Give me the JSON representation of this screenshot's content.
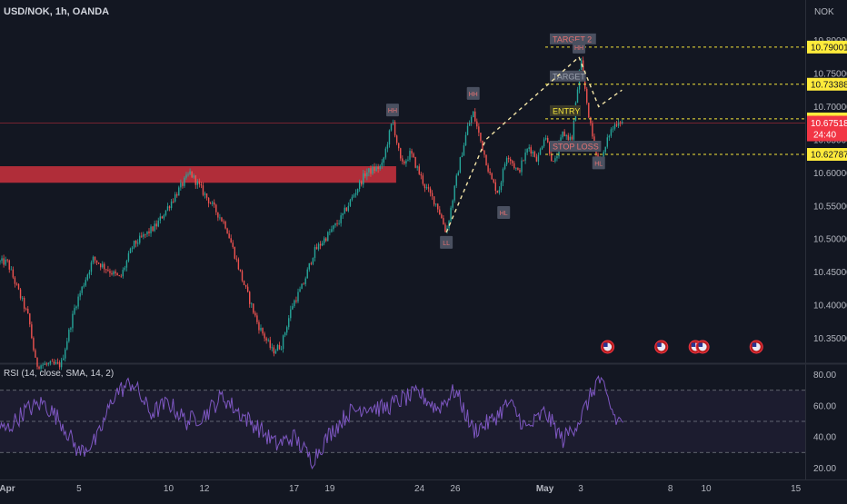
{
  "header": {
    "symbol": "USD/NOK, 1h, OANDA",
    "currency": "NOK"
  },
  "colors": {
    "background": "#131722",
    "up": "#26a69a",
    "down": "#ef5350",
    "zone": "#c2303c",
    "level_line": "#f5e53a",
    "pattern": "#f5e6a8",
    "pivot_box": "#4a5060",
    "pivot_text": "#e57373",
    "rsi_line": "#7e57c2",
    "price_tag": "#f23645",
    "level_tag": "#ffeb3b"
  },
  "chart_data": [
    {
      "type": "candlestick",
      "title": "USD/NOK, 1h, OANDA",
      "ylabel": "NOK",
      "ylim": [
        10.315,
        10.82
      ],
      "xlim": [
        "Apr 1",
        "May 17"
      ],
      "y_ticks": [
        "10.80000",
        "10.75000",
        "10.70000",
        "10.65000",
        "10.60000",
        "10.55000",
        "10.50000",
        "10.45000",
        "10.40000",
        "10.35000"
      ],
      "x_ticks": [
        {
          "label": "Apr",
          "day": 1
        },
        {
          "label": "5",
          "day": 5
        },
        {
          "label": "10",
          "day": 10
        },
        {
          "label": "12",
          "day": 12
        },
        {
          "label": "17",
          "day": 17
        },
        {
          "label": "19",
          "day": 19
        },
        {
          "label": "24",
          "day": 24
        },
        {
          "label": "26",
          "day": 26
        },
        {
          "label": "May",
          "day": 31
        },
        {
          "label": "3",
          "day": 33
        },
        {
          "label": "8",
          "day": 38
        },
        {
          "label": "10",
          "day": 40
        },
        {
          "label": "15",
          "day": 45
        }
      ],
      "close_path": [
        {
          "day": 1.0,
          "price": 10.465
        },
        {
          "day": 2.2,
          "price": 10.38
        },
        {
          "day": 2.6,
          "price": 10.31
        },
        {
          "day": 4.0,
          "price": 10.31
        },
        {
          "day": 4.8,
          "price": 10.4
        },
        {
          "day": 5.8,
          "price": 10.47
        },
        {
          "day": 7.3,
          "price": 10.44
        },
        {
          "day": 8.0,
          "price": 10.49
        },
        {
          "day": 9.3,
          "price": 10.52
        },
        {
          "day": 10.7,
          "price": 10.58
        },
        {
          "day": 11.2,
          "price": 10.6
        },
        {
          "day": 12.2,
          "price": 10.56
        },
        {
          "day": 13.2,
          "price": 10.52
        },
        {
          "day": 14.1,
          "price": 10.44
        },
        {
          "day": 15.0,
          "price": 10.37
        },
        {
          "day": 15.8,
          "price": 10.33
        },
        {
          "day": 16.3,
          "price": 10.34
        },
        {
          "day": 16.9,
          "price": 10.4
        },
        {
          "day": 17.5,
          "price": 10.43
        },
        {
          "day": 18.1,
          "price": 10.48
        },
        {
          "day": 19.0,
          "price": 10.51
        },
        {
          "day": 19.6,
          "price": 10.53
        },
        {
          "day": 20.2,
          "price": 10.56
        },
        {
          "day": 21.0,
          "price": 10.6
        },
        {
          "day": 21.9,
          "price": 10.61
        },
        {
          "day": 22.5,
          "price": 10.68
        },
        {
          "day": 23.0,
          "price": 10.61
        },
        {
          "day": 23.5,
          "price": 10.63
        },
        {
          "day": 24.3,
          "price": 10.58
        },
        {
          "day": 25.0,
          "price": 10.55
        },
        {
          "day": 25.5,
          "price": 10.51
        },
        {
          "day": 26.2,
          "price": 10.61
        },
        {
          "day": 26.7,
          "price": 10.67
        },
        {
          "day": 27.0,
          "price": 10.69
        },
        {
          "day": 27.5,
          "price": 10.64
        },
        {
          "day": 28.0,
          "price": 10.59
        },
        {
          "day": 28.4,
          "price": 10.57
        },
        {
          "day": 28.9,
          "price": 10.63
        },
        {
          "day": 29.5,
          "price": 10.6
        },
        {
          "day": 30.1,
          "price": 10.64
        },
        {
          "day": 30.6,
          "price": 10.62
        },
        {
          "day": 31.0,
          "price": 10.66
        },
        {
          "day": 31.5,
          "price": 10.61
        },
        {
          "day": 32.0,
          "price": 10.66
        },
        {
          "day": 32.5,
          "price": 10.65
        },
        {
          "day": 33.0,
          "price": 10.77
        },
        {
          "day": 33.6,
          "price": 10.66
        },
        {
          "day": 34.1,
          "price": 10.61
        },
        {
          "day": 34.6,
          "price": 10.66
        },
        {
          "day": 35.1,
          "price": 10.68
        },
        {
          "day": 35.4,
          "price": 10.675
        }
      ],
      "supply_zone": {
        "from_day": 1,
        "to_day": 22.7,
        "top": 10.61,
        "bottom": 10.585
      },
      "levels": [
        {
          "name": "TARGET 2",
          "price": 10.79001,
          "tag": "10.79001"
        },
        {
          "name": "TARGET",
          "price": 10.73388,
          "tag": "10.73388"
        },
        {
          "name": "ENTRY",
          "price": 10.6815,
          "tag": "10.68150"
        },
        {
          "name": "STOP LOSS",
          "price": 10.62787,
          "tag": "10.62787"
        }
      ],
      "current_price": {
        "price": 10.67518,
        "tag": "10.67518",
        "countdown": "24:40"
      },
      "pivots": [
        {
          "label": "HH",
          "day": 22.5,
          "price": 10.695
        },
        {
          "label": "LL",
          "day": 25.5,
          "price": 10.495
        },
        {
          "label": "HH",
          "day": 27.0,
          "price": 10.72
        },
        {
          "label": "HL",
          "day": 28.7,
          "price": 10.54
        },
        {
          "label": "HH",
          "day": 32.9,
          "price": 10.79
        },
        {
          "label": "HL",
          "day": 34.0,
          "price": 10.615
        }
      ],
      "pattern_lines": [
        [
          {
            "day": 25.5,
            "price": 10.51
          },
          {
            "day": 27.7,
            "price": 10.65
          },
          {
            "day": 32.9,
            "price": 10.775
          }
        ],
        [
          {
            "day": 32.9,
            "price": 10.775
          },
          {
            "day": 34.0,
            "price": 10.7
          },
          {
            "day": 35.3,
            "price": 10.725
          }
        ]
      ],
      "events_days": [
        34.5,
        37.5,
        39.4,
        39.8,
        42.8
      ]
    },
    {
      "type": "line",
      "title": "RSI (14, close, SMA, 14, 2)",
      "ylim": [
        15,
        85
      ],
      "y_ticks": [
        "80.00",
        "60.00",
        "40.00",
        "20.00"
      ],
      "band": [
        30,
        70
      ],
      "midline": 50,
      "x": [
        1,
        2,
        3,
        4,
        5,
        6,
        7,
        8,
        9,
        10,
        11,
        12,
        13,
        14,
        15,
        16,
        17,
        18,
        19,
        20,
        21,
        22,
        23,
        24,
        25,
        26,
        27,
        28,
        29,
        30,
        31,
        32,
        33,
        34,
        35,
        35.4
      ],
      "values": [
        45,
        57,
        62,
        50,
        30,
        38,
        68,
        75,
        55,
        62,
        50,
        54,
        66,
        55,
        46,
        35,
        40,
        25,
        42,
        55,
        60,
        58,
        64,
        68,
        58,
        70,
        44,
        50,
        62,
        45,
        56,
        38,
        52,
        78,
        50,
        52
      ]
    }
  ]
}
